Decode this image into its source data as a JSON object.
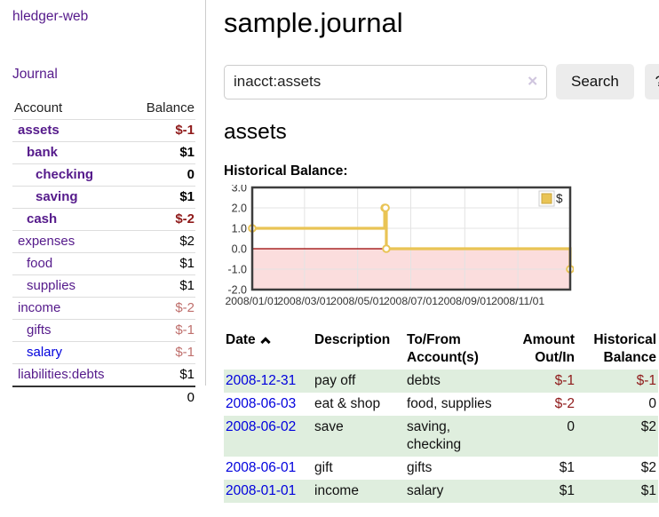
{
  "colors": {
    "link_purple": "#551a8b",
    "link_blue": "#0000dd",
    "negative_strong": "#8f1a1a",
    "negative_soft": "#bf6f6c",
    "row_stripe_green": "#dfeede",
    "chart_line_gold": "#e9c455",
    "chart_negative_region": "#fbdddd",
    "chart_zero_line": "#990000",
    "button_gray": "#ececec"
  },
  "sidebar": {
    "brand": "hledger-web",
    "nav": {
      "journal": "Journal"
    },
    "accounts_table": {
      "headers": {
        "account": "Account",
        "balance": "Balance"
      },
      "rows": [
        {
          "account": "assets",
          "depth": 1,
          "bold": true,
          "blue": false,
          "balance": "$-1",
          "balance_style": "neg-strong"
        },
        {
          "account": "bank",
          "depth": 2,
          "bold": true,
          "blue": false,
          "balance": "$1",
          "balance_style": "pos"
        },
        {
          "account": "checking",
          "depth": 3,
          "bold": true,
          "blue": false,
          "balance": "0",
          "balance_style": "pos"
        },
        {
          "account": "saving",
          "depth": 3,
          "bold": true,
          "blue": false,
          "balance": "$1",
          "balance_style": "pos"
        },
        {
          "account": "cash",
          "depth": 2,
          "bold": true,
          "blue": false,
          "balance": "$-2",
          "balance_style": "neg-strong"
        },
        {
          "account": "expenses",
          "depth": 1,
          "bold": false,
          "blue": false,
          "balance": "$2",
          "balance_style": "pos"
        },
        {
          "account": "food",
          "depth": 2,
          "bold": false,
          "blue": false,
          "balance": "$1",
          "balance_style": "pos"
        },
        {
          "account": "supplies",
          "depth": 2,
          "bold": false,
          "blue": false,
          "balance": "$1",
          "balance_style": "pos"
        },
        {
          "account": "income",
          "depth": 1,
          "bold": false,
          "blue": false,
          "balance": "$-2",
          "balance_style": "neg-soft"
        },
        {
          "account": "gifts",
          "depth": 2,
          "bold": false,
          "blue": false,
          "balance": "$-1",
          "balance_style": "neg-soft"
        },
        {
          "account": "salary",
          "depth": 2,
          "bold": false,
          "blue": true,
          "balance": "$-1",
          "balance_style": "neg-soft"
        },
        {
          "account": "liabilities:debts",
          "depth": 1,
          "bold": false,
          "blue": false,
          "balance": "$1",
          "balance_style": "pos"
        }
      ],
      "total": "0"
    }
  },
  "header": {
    "title": "sample.journal",
    "search": {
      "value": "inacct:assets",
      "clear_icon": "✕",
      "search_button": "Search",
      "help_button": "?"
    }
  },
  "main": {
    "account_heading": "assets",
    "chart_title": "Historical Balance:"
  },
  "chart_data": {
    "type": "line",
    "step": true,
    "markers": true,
    "title": "Historical Balance:",
    "series": [
      {
        "name": "$",
        "color": "#e9c455",
        "points": [
          {
            "date": "2008-01-01",
            "value": 1
          },
          {
            "date": "2008-06-01",
            "value": 2
          },
          {
            "date": "2008-06-02",
            "value": 2
          },
          {
            "date": "2008-06-03",
            "value": 0
          },
          {
            "date": "2008-12-31",
            "value": -1
          }
        ]
      }
    ],
    "xlim": [
      "2008-01-01",
      "2008-12-31"
    ],
    "ylim": [
      -2,
      3
    ],
    "x_ticks": [
      {
        "date": "2008-01-01",
        "label": "2008/01/01"
      },
      {
        "date": "2008-03-01",
        "label": "2008/03/01"
      },
      {
        "date": "2008-05-01",
        "label": "2008/05/01"
      },
      {
        "date": "2008-07-01",
        "label": "2008/07/01"
      },
      {
        "date": "2008-09-01",
        "label": "2008/09/01"
      },
      {
        "date": "2008-11-01",
        "label": "2008/11/01"
      }
    ],
    "y_ticks": [
      {
        "value": 3,
        "label": "3.0"
      },
      {
        "value": 2,
        "label": "2.0"
      },
      {
        "value": 1,
        "label": "1.0"
      },
      {
        "value": 0,
        "label": "0.0"
      },
      {
        "value": -1,
        "label": "-1.0"
      },
      {
        "value": -2,
        "label": "-2.0"
      }
    ],
    "grid": true,
    "legend_position": "top-right",
    "legend": [
      {
        "label": "$",
        "color": "#e9c455"
      }
    ],
    "negative_region_color": "#fbdddd",
    "zero_line_color": "#990000"
  },
  "register_table": {
    "headers": [
      {
        "line1": "Date",
        "line2": "",
        "align": "left",
        "sortable": true
      },
      {
        "line1": "Description",
        "line2": "",
        "align": "left",
        "sortable": false
      },
      {
        "line1": "To/From",
        "line2": "Account(s)",
        "align": "left",
        "sortable": false
      },
      {
        "line1": "Amount",
        "line2": "Out/In",
        "align": "right",
        "sortable": false
      },
      {
        "line1": "Historical",
        "line2": "Balance",
        "align": "right",
        "sortable": false
      }
    ],
    "rows": [
      {
        "date": "2008-12-31",
        "description": "pay off",
        "accounts": "debts",
        "amount": "$-1",
        "amount_neg": true,
        "balance": "$-1",
        "balance_neg": true
      },
      {
        "date": "2008-06-03",
        "description": "eat & shop",
        "accounts": "food, supplies",
        "amount": "$-2",
        "amount_neg": true,
        "balance": "0",
        "balance_neg": false
      },
      {
        "date": "2008-06-02",
        "description": "save",
        "accounts": "saving, checking",
        "amount": "0",
        "amount_neg": false,
        "balance": "$2",
        "balance_neg": false
      },
      {
        "date": "2008-06-01",
        "description": "gift",
        "accounts": "gifts",
        "amount": "$1",
        "amount_neg": false,
        "balance": "$2",
        "balance_neg": false
      },
      {
        "date": "2008-01-01",
        "description": "income",
        "accounts": "salary",
        "amount": "$1",
        "amount_neg": false,
        "balance": "$1",
        "balance_neg": false
      }
    ]
  }
}
